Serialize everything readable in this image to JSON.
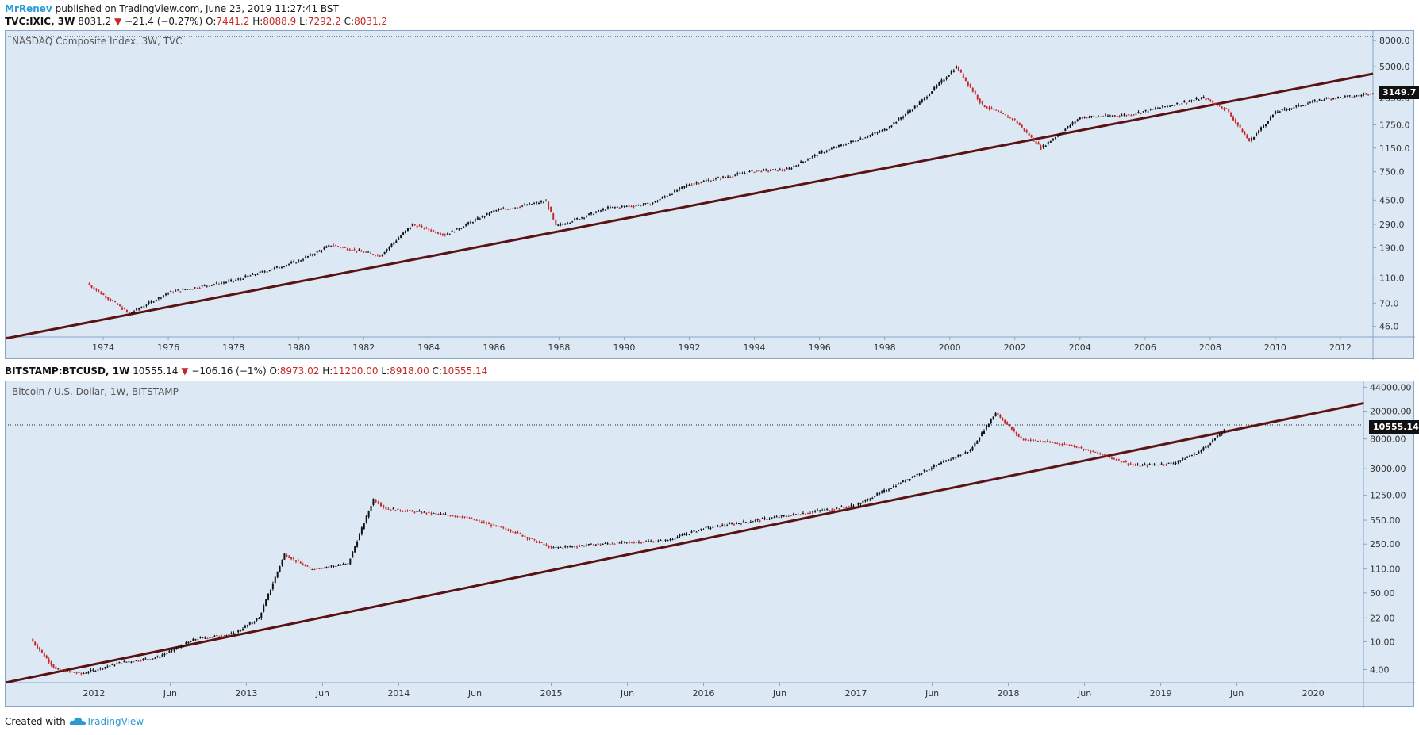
{
  "header": {
    "author": "MrRenev",
    "published": "published on TradingView.com, June 23, 2019 11:27:41 BST"
  },
  "nasdaq": {
    "symbol": "TVC:IXIC, 3W",
    "last": "8031.2",
    "change": "−21.4 (−0.27%)",
    "o_label": "O:",
    "o": "7441.2",
    "h_label": "H:",
    "h": "8088.9",
    "l_label": "L:",
    "l": "7292.2",
    "c_label": "C:",
    "c": "8031.2",
    "title": "NASDAQ Composite Index, 3W, TVC",
    "price_tag": "3149.7",
    "x_ticks": [
      "1974",
      "1976",
      "1978",
      "1980",
      "1982",
      "1984",
      "1986",
      "1988",
      "1990",
      "1992",
      "1994",
      "1996",
      "1998",
      "2000",
      "2002",
      "2004",
      "2006",
      "2008",
      "2010",
      "2012"
    ],
    "y_ticks": [
      "8000.0",
      "5000.0",
      "2850.0",
      "1750.0",
      "1150.0",
      "750.0",
      "450.0",
      "290.0",
      "190.0",
      "110.0",
      "70.0",
      "46.0"
    ]
  },
  "btc": {
    "symbol": "BITSTAMP:BTCUSD, 1W",
    "last": "10555.14",
    "change": "−106.16 (−1%)",
    "o_label": "O:",
    "o": "8973.02",
    "h_label": "H:",
    "h": "11200.00",
    "l_label": "L:",
    "l": "8918.00",
    "c_label": "C:",
    "c": "10555.14",
    "title": "Bitcoin / U.S. Dollar, 1W, BITSTAMP",
    "price_tag": "10555.14",
    "x_ticks": [
      "2012",
      "Jun",
      "2013",
      "Jun",
      "2014",
      "Jun",
      "2015",
      "Jun",
      "2016",
      "Jun",
      "2017",
      "Jun",
      "2018",
      "Jun",
      "2019",
      "Jun",
      "2020"
    ],
    "y_ticks": [
      "44000.00",
      "20000.00",
      "8000.00",
      "3000.00",
      "1250.00",
      "550.00",
      "250.00",
      "110.00",
      "50.00",
      "22.00",
      "10.00",
      "4.00"
    ]
  },
  "footer": {
    "created": "Created with",
    "brand": "TradingView"
  },
  "chart_data": [
    {
      "type": "line",
      "title": "NASDAQ Composite Index, 3W, TVC",
      "scale": "log",
      "x": [
        1973.5,
        1974.8,
        1976.0,
        1978.0,
        1980.0,
        1981.0,
        1982.5,
        1983.5,
        1984.5,
        1986.0,
        1987.6,
        1987.9,
        1989.5,
        1990.8,
        1992.0,
        1994.0,
        1995.0,
        1996.0,
        1998.0,
        1999.0,
        2000.2,
        2001.0,
        2002.0,
        2002.8,
        2004.0,
        2005.5,
        2007.8,
        2008.5,
        2009.2,
        2010.0,
        2011.5,
        2012.5,
        2013.0
      ],
      "y": [
        100,
        58,
        85,
        105,
        150,
        200,
        165,
        290,
        240,
        370,
        440,
        280,
        390,
        420,
        600,
        760,
        780,
        1050,
        1600,
        2500,
        5000,
        2500,
        1900,
        1150,
        2000,
        2100,
        2850,
        2300,
        1300,
        2200,
        2800,
        2950,
        3150
      ],
      "trendline": {
        "x": [
          1971.0,
          2013.0
        ],
        "y": [
          37,
          4400
        ]
      },
      "ylim": [
        38,
        9000
      ],
      "colors": {
        "up": "#111111",
        "down": "#c62828",
        "trend": "#5a1212"
      }
    },
    {
      "type": "line",
      "title": "Bitcoin / U.S. Dollar, 1W, BITSTAMP",
      "scale": "log",
      "x": [
        "2011-08",
        "2011-10",
        "2011-12",
        "2012-03",
        "2012-06",
        "2012-09",
        "2012-12",
        "2013-02",
        "2013-04",
        "2013-06",
        "2013-09",
        "2013-11",
        "2013-12",
        "2014-06",
        "2014-10",
        "2015-01",
        "2015-06",
        "2015-10",
        "2016-01",
        "2016-06",
        "2017-01",
        "2017-06",
        "2017-10",
        "2017-12",
        "2018-02",
        "2018-06",
        "2018-11",
        "2019-02",
        "2019-04",
        "2019-06"
      ],
      "y": [
        11,
        4,
        3.5,
        5,
        6,
        11,
        13,
        22,
        180,
        110,
        130,
        1100,
        800,
        620,
        380,
        220,
        260,
        280,
        420,
        580,
        900,
        2600,
        5500,
        19000,
        8000,
        6500,
        3300,
        3600,
        5200,
        10555
      ],
      "trendline": {
        "x": [
          "2011-06",
          "2020-05"
        ],
        "y": [
          2.6,
          26000
        ]
      },
      "ylim": [
        2.6,
        48000
      ],
      "colors": {
        "up": "#111111",
        "down": "#c62828",
        "trend": "#5a1212"
      }
    }
  ]
}
